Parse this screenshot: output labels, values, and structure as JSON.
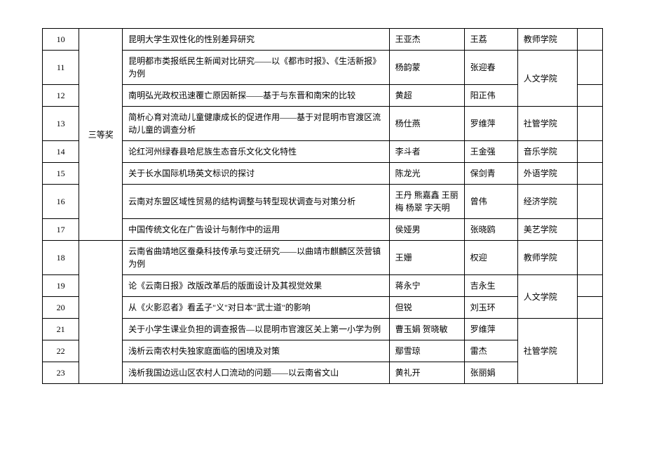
{
  "table": {
    "background_color": "#ffffff",
    "border_color": "#000000",
    "text_color": "#000000",
    "font_size": 12,
    "font_family": "SimSun",
    "award_label": "三等奖",
    "rows": [
      {
        "num": "10",
        "title": "昆明大学生双性化的性别差异研究",
        "author": "王亚杰",
        "advisor": "王荔",
        "school": "教师学院"
      },
      {
        "num": "11",
        "title": "昆明都市类报纸民生新闻对比研究——以《都市时报》、《生活新报》为例",
        "author": "杨韵蒙",
        "advisor": "张迎春",
        "school": "人文学院"
      },
      {
        "num": "12",
        "title": "南明弘光政权迅速覆亡原因新探——基于与东晋和南宋的比较",
        "author": "黄超",
        "advisor": "阳正伟",
        "school": ""
      },
      {
        "num": "13",
        "title": "简析心育对流动儿童健康成长的促进作用——基于对昆明市官渡区流动儿童的调查分析",
        "author": "杨仕燕",
        "advisor": "罗维萍",
        "school": "社管学院"
      },
      {
        "num": "14",
        "title": "论红河州绿春县哈尼族生态音乐文化文化特性",
        "author": "李斗者",
        "advisor": "王金强",
        "school": "音乐学院"
      },
      {
        "num": "15",
        "title": "关于长水国际机场英文标识的探讨",
        "author": "陈龙光",
        "advisor": "保剑青",
        "school": "外语学院"
      },
      {
        "num": "16",
        "title": "云南对东盟区域性贸易的结构调整与转型现状调查与对策分析",
        "author": "王丹 熊嘉鑫 王丽梅 杨翠 字天明",
        "advisor": "曾伟",
        "school": "经济学院"
      },
      {
        "num": "17",
        "title": "中国传统文化在广告设计与制作中的运用",
        "author": "侯娅男",
        "advisor": "张晓鸥",
        "school": "美艺学院"
      },
      {
        "num": "18",
        "title": "云南省曲靖地区蚕桑科技传承与变迁研究——以曲靖市麒麟区茨营镇为例",
        "author": "王姗",
        "advisor": "权迎",
        "school": "教师学院"
      },
      {
        "num": "19",
        "title": "论《云南日报》改版改革后的版面设计及其视觉效果",
        "author": "蒋永宁",
        "advisor": "吉永生",
        "school": "人文学院"
      },
      {
        "num": "20",
        "title": "从《火影忍者》看孟子\"义\"对日本\"武士道\"的影响",
        "author": "但锐",
        "advisor": "刘玉环",
        "school": ""
      },
      {
        "num": "21",
        "title": "关于小学生课业负担的调查报告—以昆明市官渡区关上第一小学为例",
        "author": "曹玉娟 贺晓敏",
        "advisor": "罗维萍",
        "school": "社管学院"
      },
      {
        "num": "22",
        "title": "浅析云南农村失独家庭面临的困境及对策",
        "author": "鄢雪琼",
        "advisor": "雷杰",
        "school": ""
      },
      {
        "num": "23",
        "title": "浅析我国边远山区农村人口流动的问题——以云南省文山",
        "author": "黄礼开",
        "advisor": "张丽娟",
        "school": ""
      }
    ]
  }
}
